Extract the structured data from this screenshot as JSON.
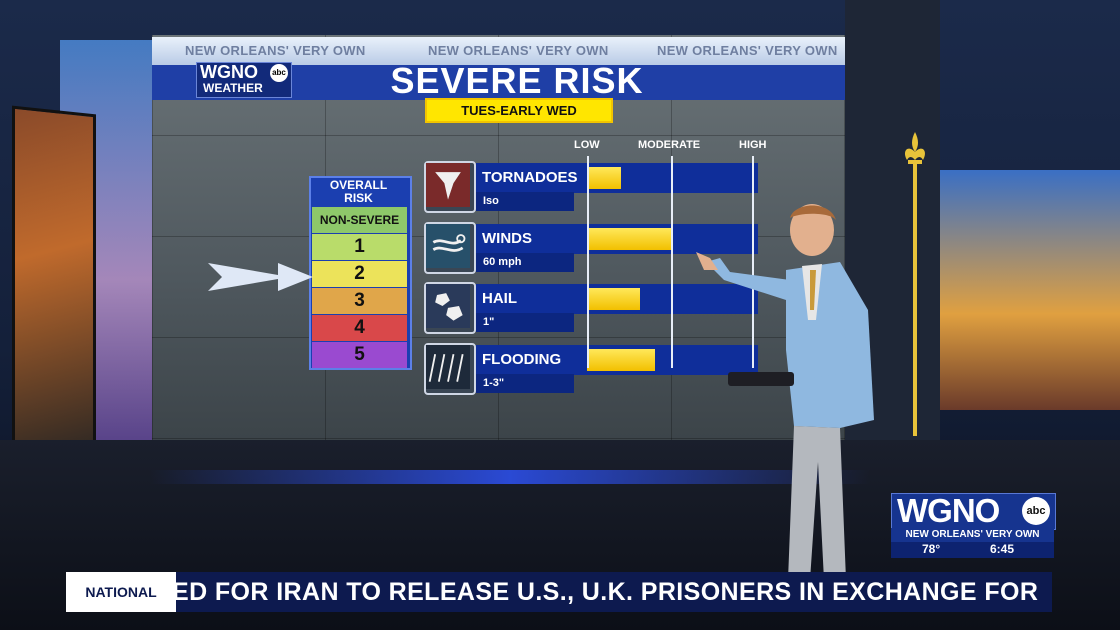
{
  "graphic": {
    "tagline": "NEW ORLEANS' VERY OWN",
    "logo_top": "WGNO",
    "logo_abc": "abc",
    "logo_bottom": "WEATHER",
    "title": "SEVERE RISK",
    "subtitle": "TUES-EARLY WED",
    "scale": {
      "low": "LOW",
      "moderate": "MODERATE",
      "high": "HIGH"
    },
    "overall_risk": {
      "title_line1": "OVERALL",
      "title_line2": "RISK",
      "levels": [
        {
          "label": "NON-SEVERE",
          "color": "#8ec86a"
        },
        {
          "label": "1",
          "color": "#b9dc6a"
        },
        {
          "label": "2",
          "color": "#ece35a"
        },
        {
          "label": "3",
          "color": "#e0a64a"
        },
        {
          "label": "4",
          "color": "#d9484a"
        },
        {
          "label": "5",
          "color": "#9a4ad0"
        }
      ],
      "indicated_level": "2"
    },
    "hazards": [
      {
        "name": "TORNADOES",
        "detail": "Iso",
        "icon": "tornado-icon",
        "risk_fraction": 0.2
      },
      {
        "name": "WINDS",
        "detail": "60 mph",
        "icon": "wind-icon",
        "risk_fraction": 0.5
      },
      {
        "name": "HAIL",
        "detail": "1\"",
        "icon": "hail-icon",
        "risk_fraction": 0.31
      },
      {
        "name": "FLOODING",
        "detail": "1-3\"",
        "icon": "rain-icon",
        "risk_fraction": 0.4
      }
    ],
    "bar_color": "#f5cf1a"
  },
  "station_bug": {
    "logo": "WGNO",
    "abc": "abc",
    "tagline": "NEW ORLEANS' VERY OWN",
    "temperature": "78°",
    "time": "6:45"
  },
  "ticker": {
    "label": "NATIONAL",
    "text": "ED FOR IRAN TO RELEASE U.S., U.K. PRISONERS IN EXCHANGE FOR"
  }
}
